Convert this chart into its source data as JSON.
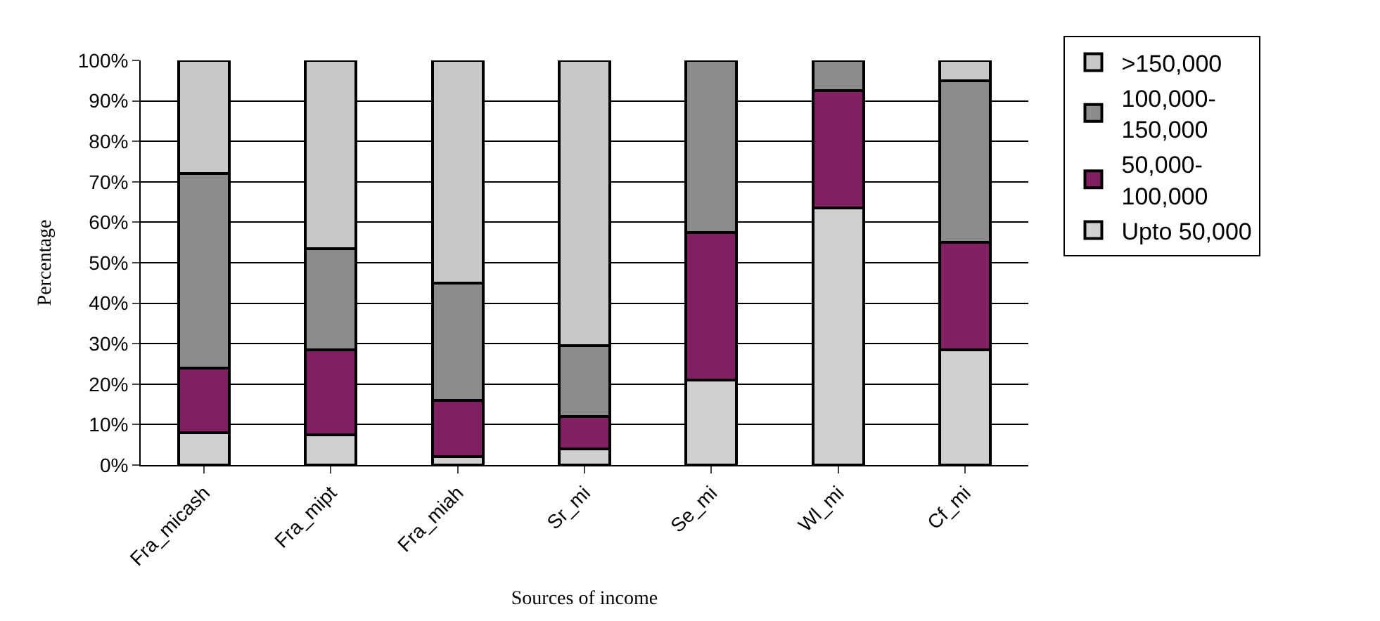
{
  "chart_data": {
    "type": "bar",
    "stacked": true,
    "xlabel": "Sources of income",
    "ylabel": "Percentage",
    "categories": [
      "Fra_micash",
      "Fra_mipt",
      "Fra_miah",
      "Sr_mi",
      "Se_mi",
      "Wl_mi",
      "Cf_mi"
    ],
    "series": [
      {
        "name": "Upto 50,000",
        "color": "#d0d0d0",
        "values": [
          8,
          7.5,
          2,
          4,
          21,
          63.5,
          28.5
        ]
      },
      {
        "name": "50,000-100,000",
        "color": "#802060",
        "values": [
          16,
          21,
          14,
          8,
          36.5,
          29,
          26.5
        ]
      },
      {
        "name": "100,000-150,000",
        "color": "#8c8c8c",
        "values": [
          48,
          25,
          29,
          17.5,
          42.5,
          7.5,
          40
        ]
      },
      {
        "name": ">150,000",
        "color": "#c8c8c8",
        "values": [
          28,
          46.5,
          55,
          70.5,
          0,
          0,
          5
        ]
      }
    ],
    "ylim": [
      0,
      100
    ],
    "yticks": [
      {
        "value": 0,
        "label": "0%"
      },
      {
        "value": 10,
        "label": "10%"
      },
      {
        "value": 20,
        "label": "20%"
      },
      {
        "value": 30,
        "label": "30%"
      },
      {
        "value": 40,
        "label": "40%"
      },
      {
        "value": 50,
        "label": "50%"
      },
      {
        "value": 60,
        "label": "60%"
      },
      {
        "value": 70,
        "label": "70%"
      },
      {
        "value": 80,
        "label": "80%"
      },
      {
        "value": 90,
        "label": "90%"
      },
      {
        "value": 100,
        "label": "100%"
      }
    ],
    "grid": "y",
    "legend": "right"
  }
}
